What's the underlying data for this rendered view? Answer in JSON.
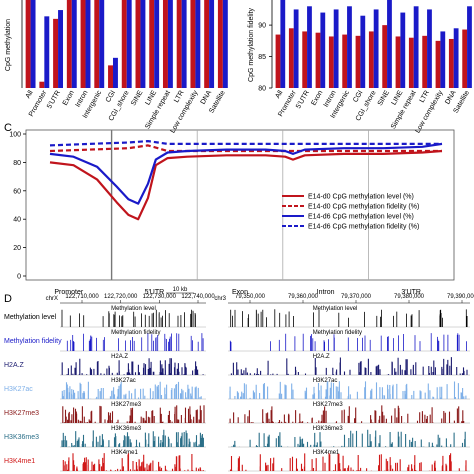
{
  "colors": {
    "red": "#c0141c",
    "blue": "#1a1ac8",
    "h2az": "#1c1c70",
    "h3k27ac": "#7fb0e8",
    "h3k27me3": "#8a1a1a",
    "h3k36me3": "#2b6f88",
    "h3k4me1": "#d01818",
    "grey": "#888888"
  },
  "chart_data": [
    {
      "id": "A",
      "type": "bar",
      "ylabel": "CpG methylation",
      "categories": [
        "All",
        "Promoter",
        "5'UTR",
        "Exon",
        "Intron",
        "Intergenic",
        "CGI",
        "CGI_shore",
        "SINE",
        "LINE",
        "Simple repeat",
        "LTR",
        "Low complexity",
        "DNA",
        "Satellite"
      ],
      "series": [
        {
          "color": "red",
          "values": [
            70,
            5,
            55,
            70,
            70,
            70,
            18,
            70,
            70,
            70,
            70,
            70,
            70,
            70,
            70
          ]
        },
        {
          "color": "blue",
          "values": [
            70,
            57,
            62,
            70,
            70,
            70,
            24,
            70,
            70,
            70,
            70,
            70,
            70,
            70,
            70
          ]
        }
      ],
      "ylim": [
        0,
        70
      ]
    },
    {
      "id": "B",
      "type": "bar",
      "ylabel": "CpG methylation fidelity",
      "yticks": [
        "80",
        "85",
        "90"
      ],
      "categories": [
        "All",
        "Promoter",
        "5'UTR",
        "Exon",
        "Intron",
        "Intergenic",
        "CGI",
        "CGI_shore",
        "SINE",
        "LINE",
        "Simple repeat",
        "LTR",
        "Low complexity",
        "DNA",
        "Satellite"
      ],
      "series": [
        {
          "color": "red",
          "values": [
            88.5,
            89.5,
            89,
            88.8,
            88.2,
            88.5,
            88.3,
            89,
            90,
            88.2,
            88,
            88.3,
            87.5,
            87.8,
            89.3
          ]
        },
        {
          "color": "blue",
          "values": [
            95,
            92.5,
            93,
            92,
            92.5,
            93,
            91.5,
            92.5,
            94,
            92,
            93,
            92.5,
            89,
            89.5,
            93
          ]
        }
      ],
      "ylim": [
        80,
        94
      ]
    },
    {
      "id": "C",
      "type": "line",
      "yticks": [
        "0",
        "20",
        "40",
        "60",
        "80",
        "100"
      ],
      "ylim": [
        0,
        100
      ],
      "regions": [
        "Promoter",
        "5'UTR",
        "Exon",
        "Intron",
        "3'UTR"
      ],
      "legend": [
        "E14-d0 CpG methylation level (%)",
        "E14-d0 CpG methylation fidelity (%)",
        "E14-d6 CpG methylation level (%)",
        "E14-d6 CpG methylation fidelity (%)"
      ],
      "series": [
        {
          "color": "red",
          "dash": false,
          "x": [
            0,
            0.06,
            0.12,
            0.17,
            0.2,
            0.225,
            0.25,
            0.27,
            0.3,
            0.35,
            0.45,
            0.55,
            0.6,
            0.62,
            0.65,
            0.75,
            0.85,
            0.95,
            1.0
          ],
          "y": [
            80,
            78,
            68,
            52,
            43,
            40,
            55,
            78,
            83,
            84,
            85,
            85,
            84,
            82,
            85,
            86,
            86,
            87,
            88
          ]
        },
        {
          "color": "red",
          "dash": true,
          "x": [
            0,
            0.1,
            0.2,
            0.25,
            0.3,
            0.5,
            0.7,
            0.9,
            1.0
          ],
          "y": [
            88,
            89,
            90,
            92,
            88,
            88,
            88,
            88,
            88
          ]
        },
        {
          "color": "blue",
          "dash": false,
          "x": [
            0,
            0.06,
            0.12,
            0.17,
            0.2,
            0.225,
            0.25,
            0.27,
            0.3,
            0.35,
            0.45,
            0.55,
            0.6,
            0.62,
            0.65,
            0.75,
            0.85,
            0.95,
            1.0
          ],
          "y": [
            86,
            84,
            77,
            63,
            54,
            51,
            65,
            82,
            87,
            88,
            89,
            89,
            88,
            86,
            89,
            90,
            90,
            91,
            93
          ]
        },
        {
          "color": "blue",
          "dash": true,
          "x": [
            0,
            0.1,
            0.2,
            0.25,
            0.3,
            0.5,
            0.7,
            0.9,
            1.0
          ],
          "y": [
            92,
            93,
            94,
            95,
            93,
            93,
            93,
            93,
            93
          ]
        }
      ]
    },
    {
      "id": "D",
      "type": "genome-tracks",
      "coords_left": [
        "122,710,000",
        "122,720,000",
        "122,730,000",
        "122,740,000"
      ],
      "coords_right": [
        "79,350,000",
        "79,360,000",
        "79,370,000",
        "79,380,000",
        "79,390,000"
      ],
      "scale": "10 kb",
      "tracks": [
        {
          "label": "Methylation level",
          "inner": "Methylation level",
          "color": "#000000"
        },
        {
          "label": "Methylation fidelity",
          "inner": "Methylation fidelity",
          "color": "#1a1ac8"
        },
        {
          "label": "H2A.Z",
          "inner": "H2A.Z",
          "color": "#1c1c70"
        },
        {
          "label": "H3K27ac",
          "inner": "H3K27ac",
          "color": "#7fb0e8"
        },
        {
          "label": "H3K27me3",
          "inner": "H3K27me3",
          "color": "#8a1a1a"
        },
        {
          "label": "H3K36me3",
          "inner": "H3K36me3",
          "color": "#2b6f88"
        },
        {
          "label": "H3K4me1",
          "inner": "H3K4me1",
          "color": "#d01818"
        }
      ]
    }
  ],
  "panels": {
    "C": "C",
    "D": "D"
  },
  "misc": {
    "chrlabel_left": "chrX",
    "chrlabel_right": "chr3"
  }
}
